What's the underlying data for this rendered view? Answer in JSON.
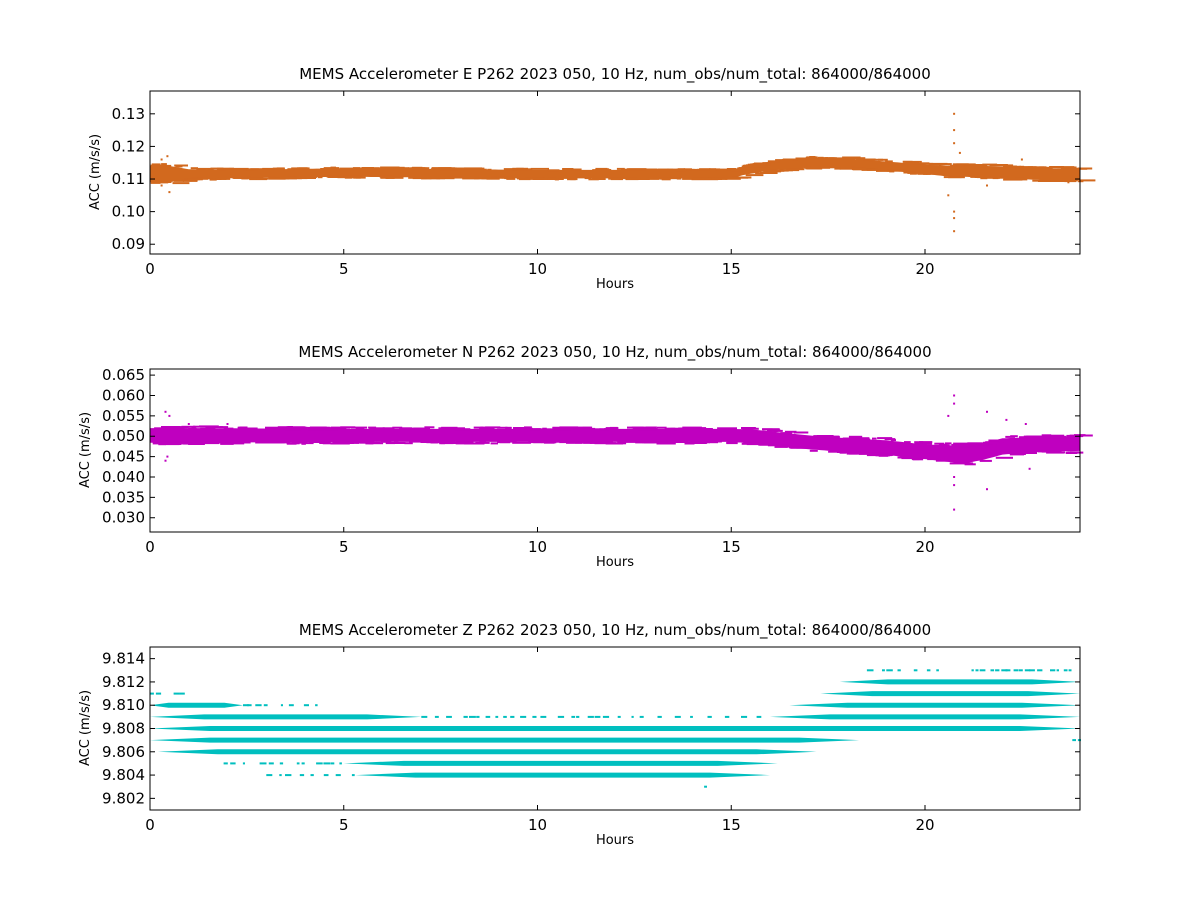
{
  "chart_data": [
    {
      "type": "scatter",
      "title": "MEMS Accelerometer E P262 2023 050, 10 Hz, num_obs/num_total: 864000/864000",
      "xlabel": "Hours",
      "ylabel": "ACC (m/s/s)",
      "xlim": [
        0,
        24
      ],
      "ylim": [
        0.087,
        0.137
      ],
      "xticks": [
        0,
        5,
        10,
        15,
        20
      ],
      "xtick_labels": [
        "0",
        "5",
        "10",
        "15",
        "20"
      ],
      "yticks": [
        0.09,
        0.1,
        0.11,
        0.12,
        0.13
      ],
      "ytick_labels": [
        "0.09",
        "0.10",
        "0.11",
        "0.12",
        "0.13"
      ],
      "color": "#d2691e",
      "grid": false,
      "band": {
        "x": [
          0,
          0.5,
          1,
          2,
          5,
          10,
          14,
          15,
          15.3,
          16,
          16.5,
          17,
          17.5,
          18,
          19,
          20,
          20.5,
          21,
          22,
          23,
          24
        ],
        "center": [
          0.1115,
          0.1115,
          0.1115,
          0.1115,
          0.112,
          0.1115,
          0.1115,
          0.1115,
          0.1125,
          0.114,
          0.1145,
          0.115,
          0.115,
          0.1148,
          0.114,
          0.113,
          0.1125,
          0.1125,
          0.112,
          0.1115,
          0.1115
        ],
        "half_width": [
          0.0025,
          0.0025,
          0.0015,
          0.0013,
          0.0013,
          0.0013,
          0.0013,
          0.0013,
          0.0013,
          0.0014,
          0.0014,
          0.0015,
          0.0014,
          0.0014,
          0.0014,
          0.0014,
          0.0016,
          0.0018,
          0.0018,
          0.0018,
          0.0018
        ]
      },
      "outliers": [
        {
          "x": 0.45,
          "y": 0.117
        },
        {
          "x": 0.5,
          "y": 0.106
        },
        {
          "x": 0.3,
          "y": 0.116
        },
        {
          "x": 0.3,
          "y": 0.108
        },
        {
          "x": 20.75,
          "y": 0.13
        },
        {
          "x": 20.75,
          "y": 0.125
        },
        {
          "x": 20.75,
          "y": 0.121
        },
        {
          "x": 20.75,
          "y": 0.1
        },
        {
          "x": 20.75,
          "y": 0.098
        },
        {
          "x": 20.75,
          "y": 0.094
        },
        {
          "x": 20.6,
          "y": 0.105
        },
        {
          "x": 20.9,
          "y": 0.118
        },
        {
          "x": 21.6,
          "y": 0.108
        },
        {
          "x": 22.5,
          "y": 0.116
        },
        {
          "x": 23.7,
          "y": 0.109
        }
      ]
    },
    {
      "type": "scatter",
      "title": "MEMS Accelerometer N P262 2023 050, 10 Hz, num_obs/num_total: 864000/864000",
      "xlabel": "Hours",
      "ylabel": "ACC (m/s/s)",
      "xlim": [
        0,
        24
      ],
      "ylim": [
        0.0265,
        0.0665
      ],
      "xticks": [
        0,
        5,
        10,
        15,
        20
      ],
      "xtick_labels": [
        "0",
        "5",
        "10",
        "15",
        "20"
      ],
      "yticks": [
        0.03,
        0.035,
        0.04,
        0.045,
        0.05,
        0.055,
        0.06,
        0.065
      ],
      "ytick_labels": [
        "0.030",
        "0.035",
        "0.040",
        "0.045",
        "0.050",
        "0.055",
        "0.060",
        "0.065"
      ],
      "color": "#bf00bf",
      "grid": false,
      "band": {
        "x": [
          0,
          1,
          5,
          10,
          15,
          15.5,
          16,
          17,
          18,
          19,
          20,
          20.5,
          21,
          21.5,
          22,
          23,
          24
        ],
        "center": [
          0.0502,
          0.0502,
          0.0502,
          0.0502,
          0.0502,
          0.05,
          0.0495,
          0.0485,
          0.0478,
          0.0472,
          0.0462,
          0.0458,
          0.0455,
          0.0462,
          0.0475,
          0.048,
          0.0482
        ],
        "half_width": [
          0.0018,
          0.0018,
          0.0016,
          0.0016,
          0.0016,
          0.0017,
          0.0017,
          0.0017,
          0.0017,
          0.0018,
          0.0018,
          0.002,
          0.0022,
          0.002,
          0.002,
          0.0018,
          0.0018
        ]
      },
      "outliers": [
        {
          "x": 0.4,
          "y": 0.056
        },
        {
          "x": 0.5,
          "y": 0.055
        },
        {
          "x": 0.45,
          "y": 0.045
        },
        {
          "x": 0.4,
          "y": 0.044
        },
        {
          "x": 1.0,
          "y": 0.053
        },
        {
          "x": 2.0,
          "y": 0.053
        },
        {
          "x": 20.75,
          "y": 0.06
        },
        {
          "x": 20.75,
          "y": 0.058
        },
        {
          "x": 20.75,
          "y": 0.04
        },
        {
          "x": 20.75,
          "y": 0.038
        },
        {
          "x": 20.75,
          "y": 0.032
        },
        {
          "x": 20.6,
          "y": 0.055
        },
        {
          "x": 21.6,
          "y": 0.056
        },
        {
          "x": 21.6,
          "y": 0.037
        },
        {
          "x": 22.1,
          "y": 0.054
        },
        {
          "x": 22.6,
          "y": 0.053
        },
        {
          "x": 22.7,
          "y": 0.042
        },
        {
          "x": 23.8,
          "y": 0.05
        }
      ]
    },
    {
      "type": "scatter",
      "title": "MEMS Accelerometer Z P262 2023 050, 10 Hz, num_obs/num_total: 864000/864000",
      "xlabel": "Hours",
      "ylabel": "ACC (m/s/s)",
      "xlim": [
        0,
        24
      ],
      "ylim": [
        9.801,
        9.815
      ],
      "xticks": [
        0,
        5,
        10,
        15,
        20
      ],
      "xtick_labels": [
        "0",
        "5",
        "10",
        "15",
        "20"
      ],
      "yticks": [
        9.802,
        9.804,
        9.806,
        9.808,
        9.81,
        9.812,
        9.814
      ],
      "ytick_labels": [
        "9.802",
        "9.804",
        "9.806",
        "9.808",
        "9.810",
        "9.812",
        "9.814"
      ],
      "color": "#00bfbf",
      "grid": false,
      "levels": [
        {
          "y": 9.813,
          "segments": [
            [
              18.5,
              19.0,
              "sparse"
            ],
            [
              19.0,
              20.5,
              "sparse"
            ],
            [
              21.2,
              24.0,
              "sparse"
            ]
          ]
        },
        {
          "y": 9.812,
          "segments": [
            [
              17.8,
              24.0,
              "solid"
            ]
          ]
        },
        {
          "y": 9.811,
          "segments": [
            [
              0.0,
              1.1,
              "sparse"
            ],
            [
              17.3,
              24.0,
              "solid"
            ]
          ]
        },
        {
          "y": 9.81,
          "segments": [
            [
              0.0,
              2.4,
              "solid"
            ],
            [
              2.4,
              4.3,
              "sparse"
            ],
            [
              16.5,
              24.0,
              "solid"
            ]
          ]
        },
        {
          "y": 9.809,
          "segments": [
            [
              0.0,
              7.0,
              "solid"
            ],
            [
              7.0,
              16.0,
              "sparse"
            ],
            [
              16.0,
              24.0,
              "solid"
            ]
          ]
        },
        {
          "y": 9.808,
          "segments": [
            [
              0.0,
              24.0,
              "solid"
            ]
          ]
        },
        {
          "y": 9.807,
          "segments": [
            [
              0.0,
              18.3,
              "solid"
            ],
            [
              23.8,
              24.0,
              "sparse"
            ]
          ]
        },
        {
          "y": 9.806,
          "segments": [
            [
              0.2,
              17.2,
              "solid"
            ]
          ]
        },
        {
          "y": 9.805,
          "segments": [
            [
              1.9,
              5.0,
              "sparse"
            ],
            [
              5.0,
              16.2,
              "solid"
            ]
          ]
        },
        {
          "y": 9.804,
          "segments": [
            [
              3.0,
              5.3,
              "sparse"
            ],
            [
              5.3,
              16.0,
              "solid"
            ]
          ]
        },
        {
          "y": 9.803,
          "segments": [
            [
              14.3,
              14.35,
              "sparse"
            ]
          ]
        }
      ]
    }
  ]
}
